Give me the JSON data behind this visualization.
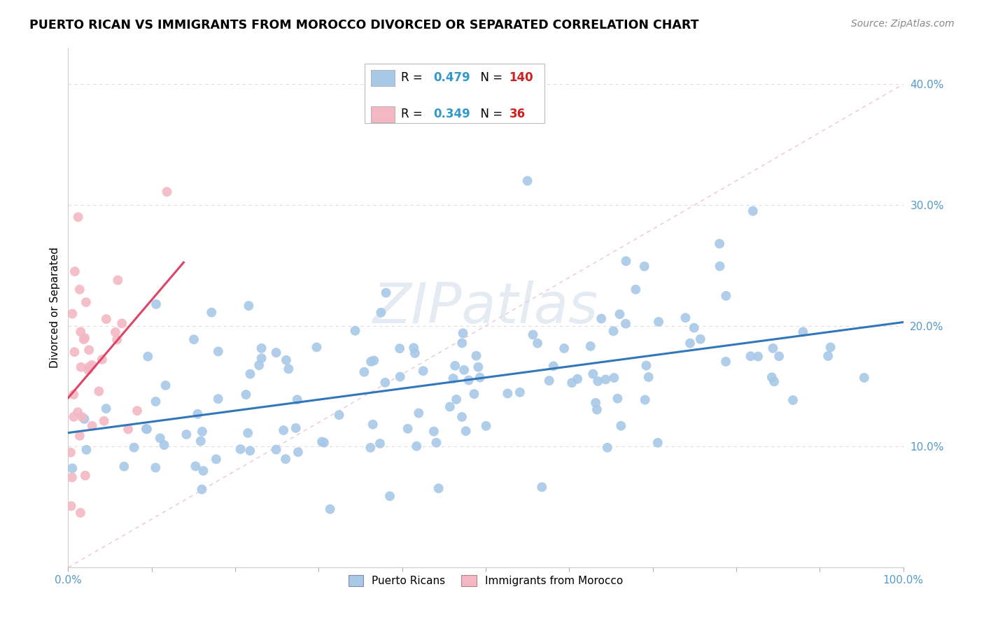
{
  "title": "PUERTO RICAN VS IMMIGRANTS FROM MOROCCO DIVORCED OR SEPARATED CORRELATION CHART",
  "source": "Source: ZipAtlas.com",
  "ylabel": "Divorced or Separated",
  "R_blue": 0.479,
  "N_blue": 140,
  "R_pink": 0.349,
  "N_pink": 36,
  "blue_color": "#a8c8e8",
  "pink_color": "#f4b8c4",
  "trend_blue": "#3377bb",
  "trend_pink": "#dd4466",
  "diag_color": "#dddddd",
  "grid_color": "#dddddd",
  "watermark_color": "#ccd8e8",
  "ytick_color": "#5599cc",
  "xtick_color": "#5599cc",
  "legend_label_blue": "Puerto Ricans",
  "legend_label_pink": "Immigrants from Morocco",
  "watermark": "ZIPatlas"
}
